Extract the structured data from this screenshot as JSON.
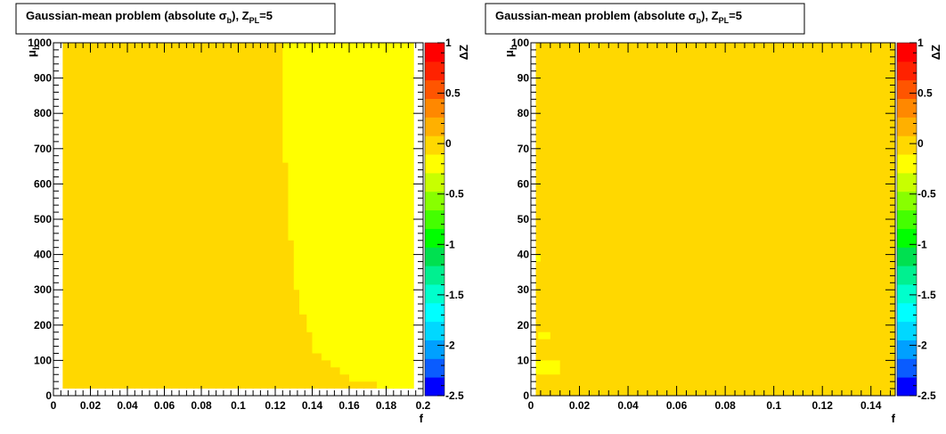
{
  "chart_data": [
    {
      "type": "heatmap",
      "title": "Gaussian-mean problem (absolute σb), ZPL=5",
      "title_parts": {
        "prefix": "Gaussian-mean problem (absolute ",
        "sigma": "σ",
        "sigma_sub": "b",
        "mid": "), Z",
        "z_sub": "PL",
        "suffix": "=5"
      },
      "xlabel": "f",
      "ylabel": "μb",
      "ylabel_parts": {
        "main": "μ",
        "sub": "b"
      },
      "zlabel": "ΔZ",
      "xlim": [
        0,
        0.2
      ],
      "ylim": [
        0,
        1000
      ],
      "zlim": [
        -2.5,
        1
      ],
      "x_ticks": [
        0,
        0.02,
        0.04,
        0.06,
        0.08,
        0.1,
        0.12,
        0.14,
        0.16,
        0.18,
        0.2
      ],
      "x_tick_labels": [
        "0",
        "0.02",
        "0.04",
        "0.06",
        "0.08",
        "0.1",
        "0.12",
        "0.14",
        "0.16",
        "0.18",
        "0.2"
      ],
      "y_ticks": [
        0,
        100,
        200,
        300,
        400,
        500,
        600,
        700,
        800,
        900,
        1000
      ],
      "y_tick_labels": [
        "0",
        "100",
        "200",
        "300",
        "400",
        "500",
        "600",
        "700",
        "800",
        "900",
        "1000"
      ],
      "z_ticks": [
        1,
        0.5,
        0,
        -0.5,
        -1,
        -1.5,
        -2,
        -2.5
      ],
      "z_tick_labels": [
        "1",
        "0.5",
        "0",
        "-0.5",
        "-1",
        "-1.5",
        "-2",
        "-2.5"
      ],
      "bins_x": [
        0.005,
        0.195
      ],
      "bins_y": [
        20,
        1000
      ],
      "background_value": 0.0,
      "regions": [
        {
          "value": -0.2,
          "polygon": [
            [
              0.124,
              1000
            ],
            [
              0.195,
              1000
            ],
            [
              0.195,
              20
            ],
            [
              0.175,
              20
            ],
            [
              0.175,
              40
            ],
            [
              0.16,
              40
            ],
            [
              0.16,
              60
            ],
            [
              0.155,
              60
            ],
            [
              0.155,
              80
            ],
            [
              0.15,
              80
            ],
            [
              0.15,
              100
            ],
            [
              0.145,
              100
            ],
            [
              0.145,
              120
            ],
            [
              0.14,
              120
            ],
            [
              0.14,
              180
            ],
            [
              0.137,
              180
            ],
            [
              0.137,
              230
            ],
            [
              0.133,
              230
            ],
            [
              0.133,
              300
            ],
            [
              0.13,
              300
            ],
            [
              0.13,
              440
            ],
            [
              0.127,
              440
            ],
            [
              0.127,
              660
            ],
            [
              0.124,
              660
            ]
          ]
        }
      ]
    },
    {
      "type": "heatmap",
      "title": "Gaussian-mean problem (absolute σb), ZPL=5",
      "title_parts": {
        "prefix": "Gaussian-mean problem (absolute ",
        "sigma": "σ",
        "sigma_sub": "b",
        "mid": "), Z",
        "z_sub": "PL",
        "suffix": "=5"
      },
      "xlabel": "f",
      "ylabel": "μb",
      "ylabel_parts": {
        "main": "μ",
        "sub": "b"
      },
      "zlabel": "ΔZ",
      "xlim": [
        0,
        0.15
      ],
      "ylim": [
        0,
        100
      ],
      "zlim": [
        -2.5,
        1
      ],
      "x_ticks": [
        0,
        0.02,
        0.04,
        0.06,
        0.08,
        0.1,
        0.12,
        0.14
      ],
      "x_tick_labels": [
        "0",
        "0.02",
        "0.04",
        "0.06",
        "0.08",
        "0.1",
        "0.12",
        "0.14"
      ],
      "y_ticks": [
        0,
        10,
        20,
        30,
        40,
        50,
        60,
        70,
        80,
        90,
        100
      ],
      "y_tick_labels": [
        "0",
        "10",
        "20",
        "30",
        "40",
        "50",
        "60",
        "70",
        "80",
        "90",
        "100"
      ],
      "z_ticks": [
        1,
        0.5,
        0,
        -0.5,
        -1,
        -1.5,
        -2,
        -2.5
      ],
      "z_tick_labels": [
        "1",
        "0.5",
        "0",
        "-0.5",
        "-1",
        "-1.5",
        "-2",
        "-2.5"
      ],
      "bins_x": [
        0.002,
        0.15
      ],
      "bins_y": [
        0,
        100
      ],
      "background_value": 0.0,
      "regions": [
        {
          "value": -0.2,
          "polygon": [
            [
              0.002,
              6
            ],
            [
              0.012,
              6
            ],
            [
              0.012,
              10
            ],
            [
              0.002,
              10
            ]
          ]
        },
        {
          "value": -0.2,
          "polygon": [
            [
              0.003,
              16
            ],
            [
              0.008,
              16
            ],
            [
              0.008,
              18
            ],
            [
              0.003,
              18
            ]
          ]
        },
        {
          "value": -0.2,
          "polygon": [
            [
              0.002,
              38
            ],
            [
              0.004,
              38
            ],
            [
              0.004,
              40
            ],
            [
              0.002,
              40
            ]
          ]
        }
      ]
    }
  ],
  "palette": [
    "#0000ff",
    "#0a5cff",
    "#00a0ff",
    "#00d8ff",
    "#00ffff",
    "#00ffcc",
    "#00f090",
    "#00e050",
    "#00ff00",
    "#44ff00",
    "#88ff00",
    "#c8ff00",
    "#ffff00",
    "#ffd800",
    "#ffb000",
    "#ff8800",
    "#ff5500",
    "#ff2200",
    "#ff0000"
  ]
}
